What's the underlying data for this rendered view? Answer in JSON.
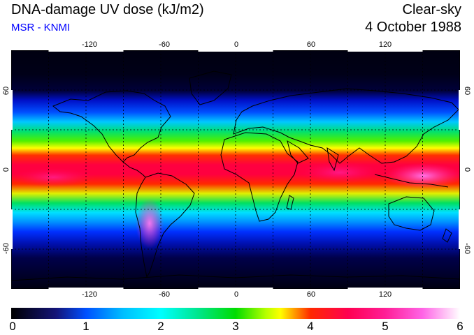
{
  "header": {
    "title": "DNA-damage UV dose (kJ/m2)",
    "subtitle": "MSR - KNMI",
    "condition": "Clear-sky",
    "date": "4 October 1988"
  },
  "map": {
    "projection": "equirectangular",
    "lon_range": [
      -180,
      180
    ],
    "lat_range": [
      -90,
      90
    ],
    "grid": "dashed 30 degrees",
    "lon_tick_labels": [
      "-120",
      "-60",
      "0",
      "60",
      "120"
    ],
    "lat_tick_labels": [
      "60",
      "0",
      "-60"
    ],
    "field_description_colors": {
      "polar": "#000014",
      "low": "#0000e6",
      "mid": "#00dc00",
      "high": "#ff0000",
      "max": "#ff96ff"
    }
  },
  "colorbar": {
    "ticks": [
      "0",
      "1",
      "2",
      "3",
      "4",
      "5",
      "6"
    ],
    "stops": [
      {
        "value": 0,
        "color": "#000000"
      },
      {
        "value": 0.6,
        "color": "#141478"
      },
      {
        "value": 1.0,
        "color": "#0050ff"
      },
      {
        "value": 1.5,
        "color": "#00bfff"
      },
      {
        "value": 2.0,
        "color": "#00ffff"
      },
      {
        "value": 2.5,
        "color": "#00e68c"
      },
      {
        "value": 3.0,
        "color": "#00dc00"
      },
      {
        "value": 3.4,
        "color": "#b4ff00"
      },
      {
        "value": 3.6,
        "color": "#ffff00"
      },
      {
        "value": 4.0,
        "color": "#ff2800"
      },
      {
        "value": 4.5,
        "color": "#ff0050"
      },
      {
        "value": 5.0,
        "color": "#ff1e96"
      },
      {
        "value": 5.5,
        "color": "#ff64e6"
      },
      {
        "value": 6.0,
        "color": "#ffffff"
      }
    ]
  }
}
